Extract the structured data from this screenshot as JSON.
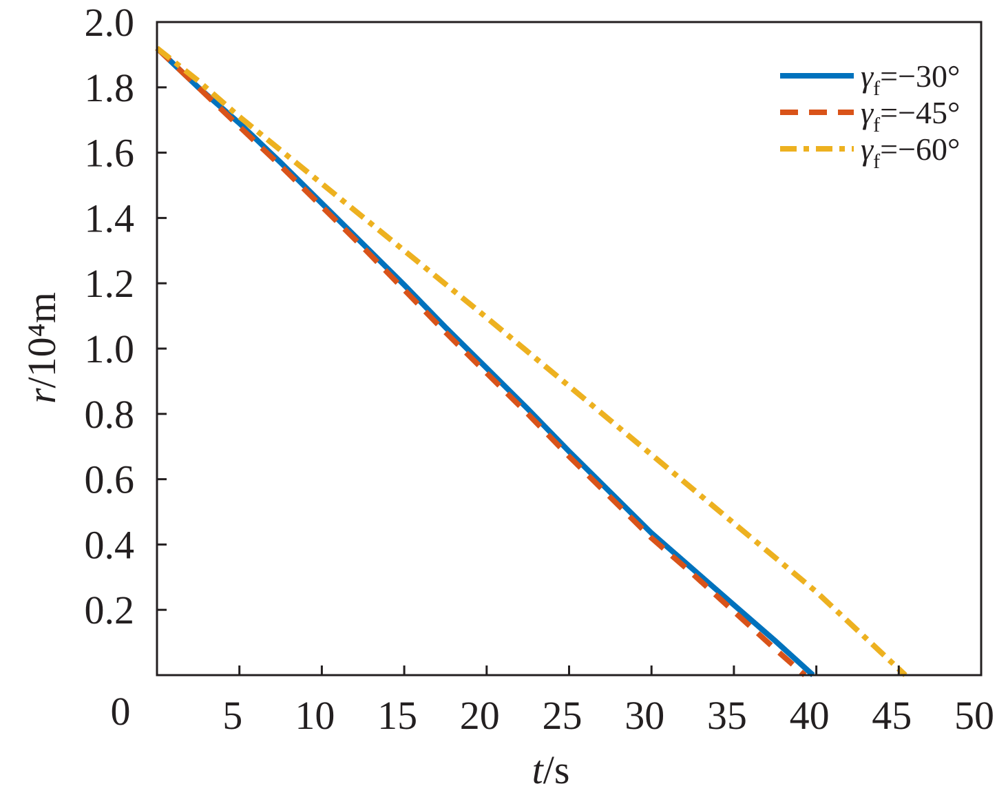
{
  "chart_data": {
    "type": "line",
    "title": "",
    "xlabel": "t/s",
    "ylabel": "r/10⁴m",
    "xlim": [
      0,
      50
    ],
    "ylim": [
      0,
      2.0
    ],
    "grid": false,
    "legend_position": "top-right",
    "origin_label": "0",
    "x_ticks": [
      5,
      10,
      15,
      20,
      25,
      30,
      35,
      40,
      45,
      50
    ],
    "x_tick_labels": [
      "5",
      "10",
      "15",
      "20",
      "25",
      "30",
      "35",
      "40",
      "45",
      "50"
    ],
    "y_ticks": [
      0.2,
      0.4,
      0.6,
      0.8,
      1.0,
      1.2,
      1.4,
      1.6,
      1.8,
      2.0
    ],
    "y_tick_labels": [
      "0.2",
      "0.4",
      "0.6",
      "0.8",
      "1.0",
      "1.2",
      "1.4",
      "1.6",
      "1.8",
      "2.0"
    ],
    "series": [
      {
        "name": "γf=−30°",
        "color": "#0072BD",
        "x": [
          0,
          2.5,
          5,
          7.5,
          10,
          12.5,
          15,
          17.5,
          20,
          22.5,
          25,
          27.5,
          30,
          32.5,
          35,
          37.5,
          39.8
        ],
        "y": [
          1.92,
          1.8,
          1.69,
          1.57,
          1.445,
          1.32,
          1.195,
          1.065,
          0.94,
          0.815,
          0.685,
          0.56,
          0.435,
          0.325,
          0.215,
          0.105,
          0
        ]
      },
      {
        "name": "γf=−45°",
        "color": "#D95319",
        "x": [
          0,
          2.5,
          5,
          7.5,
          10,
          12.5,
          15,
          17.5,
          20,
          22.5,
          25,
          27.5,
          30,
          32.5,
          35,
          37.5,
          39.3
        ],
        "y": [
          1.92,
          1.8,
          1.68,
          1.56,
          1.435,
          1.31,
          1.18,
          1.05,
          0.925,
          0.8,
          0.67,
          0.545,
          0.42,
          0.31,
          0.195,
          0.08,
          0
        ]
      },
      {
        "name": "γf=−60°",
        "color": "#EDB120",
        "x": [
          0,
          2.5,
          5,
          10,
          15,
          20,
          25,
          30,
          35,
          40,
          45.4
        ],
        "y": [
          1.92,
          1.82,
          1.71,
          1.505,
          1.3,
          1.095,
          0.885,
          0.675,
          0.465,
          0.255,
          0
        ]
      }
    ]
  }
}
